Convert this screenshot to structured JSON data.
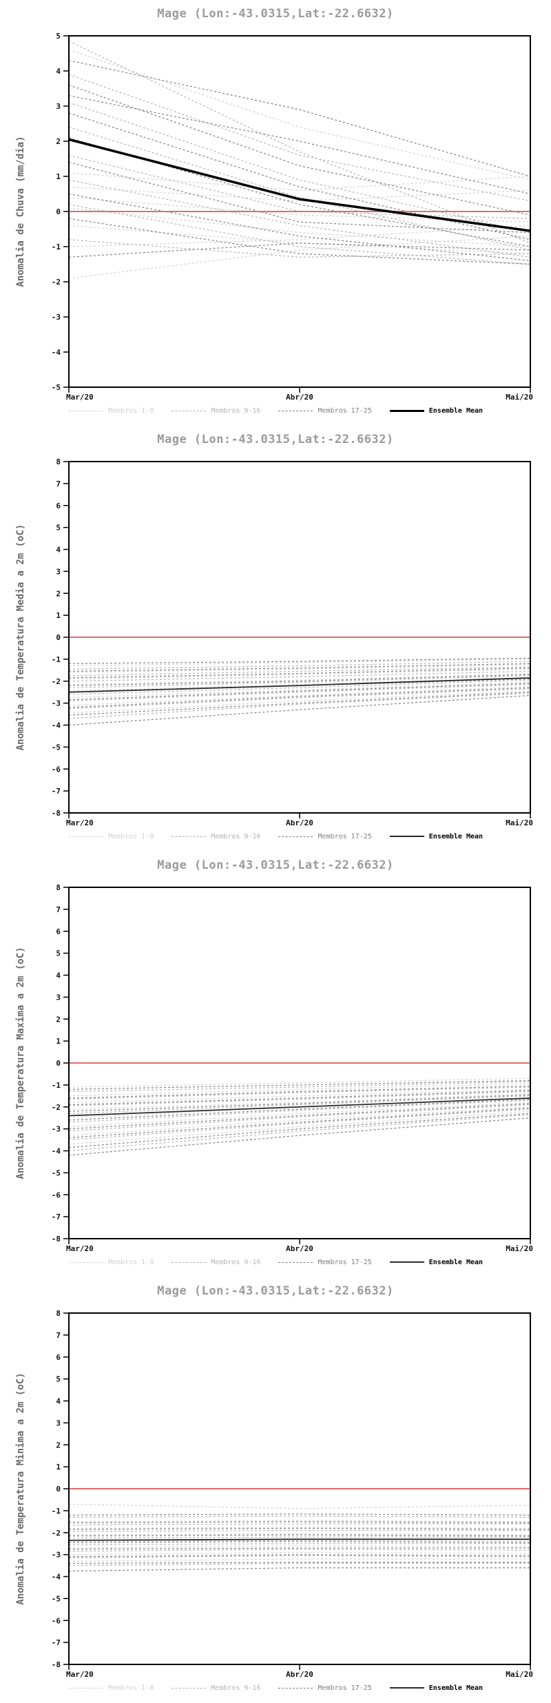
{
  "legend_note": "each chart repeats the same legend structure",
  "chart_data": [
    {
      "type": "line",
      "title": "Mage (Lon:-43.0315,Lat:-22.6632)",
      "ylabel": "Anomalia de Chuva (mm/dia)",
      "x_categories": [
        "Mar/20",
        "Abr/20",
        "Mai/20"
      ],
      "ylim": [
        -5,
        5
      ],
      "ytick_step": 1,
      "grid": false,
      "legend_position": "bottom",
      "zero_line_value": 0,
      "zero_line_color": "#e46a6a",
      "mean_label": "Ensemble Mean",
      "mean_color": "#000000",
      "mean_stroke_width": 3.5,
      "ensemble_mean": [
        2.05,
        0.35,
        -0.55
      ],
      "members_groups": [
        {
          "name": "Membros 1-8",
          "color": "#d2d2d2",
          "series": [
            [
              4.6,
              2.4,
              0.9
            ],
            [
              1.1,
              0.6,
              1.0
            ],
            [
              0.7,
              0.3,
              0.6
            ],
            [
              0.4,
              -0.1,
              -0.3
            ],
            [
              0.1,
              -0.6,
              -1.0
            ],
            [
              -0.4,
              -0.9,
              -1.2
            ],
            [
              -1.0,
              -0.8,
              -0.4
            ],
            [
              -1.9,
              -1.1,
              -0.7
            ]
          ]
        },
        {
          "name": "Membros 9-16",
          "color": "#b4b4b4",
          "series": [
            [
              4.85,
              1.7,
              -0.9
            ],
            [
              3.9,
              1.6,
              0.3
            ],
            [
              3.1,
              0.9,
              -0.6
            ],
            [
              2.4,
              0.4,
              -1.1
            ],
            [
              1.6,
              0.0,
              -0.2
            ],
            [
              0.9,
              -0.4,
              -1.3
            ],
            [
              0.2,
              -1.0,
              -1.5
            ],
            [
              -0.8,
              -1.3,
              -1.2
            ]
          ]
        },
        {
          "name": "Membros 17-25",
          "color": "#808080",
          "series": [
            [
              4.3,
              2.9,
              1.0
            ],
            [
              3.6,
              1.3,
              -0.1
            ],
            [
              3.3,
              2.0,
              0.5
            ],
            [
              2.8,
              0.7,
              -0.8
            ],
            [
              2.1,
              0.2,
              -1.0
            ],
            [
              1.4,
              -0.3,
              -0.6
            ],
            [
              0.5,
              -0.7,
              -1.4
            ],
            [
              -0.2,
              -1.2,
              -1.5
            ],
            [
              -1.3,
              -0.9,
              -1.1
            ]
          ]
        }
      ]
    },
    {
      "type": "line",
      "title": "Mage (Lon:-43.0315,Lat:-22.6632)",
      "ylabel": "Anomalia de Temperatura Media a 2m (oC)",
      "x_categories": [
        "Mar/20",
        "Abr/20",
        "Mai/20"
      ],
      "ylim": [
        -8,
        8
      ],
      "ytick_step": 1,
      "grid": false,
      "legend_position": "bottom",
      "zero_line_value": 0,
      "zero_line_color": "#e46a6a",
      "mean_label": "Ensemble Mean",
      "mean_color": "#2a2a2a",
      "mean_stroke_width": 1.8,
      "ensemble_mean": [
        -2.5,
        -2.2,
        -1.85
      ],
      "members_groups": [
        {
          "name": "Membros 1-8",
          "color": "#d2d2d2",
          "series": [
            [
              -1.3,
              -1.15,
              -1.0
            ],
            [
              -1.6,
              -1.45,
              -1.25
            ],
            [
              -1.9,
              -1.7,
              -1.45
            ],
            [
              -2.15,
              -1.95,
              -1.65
            ],
            [
              -2.45,
              -2.15,
              -1.85
            ],
            [
              -2.75,
              -2.4,
              -2.05
            ],
            [
              -3.1,
              -2.65,
              -2.25
            ],
            [
              -3.45,
              -2.9,
              -2.45
            ]
          ]
        },
        {
          "name": "Membros 9-16",
          "color": "#b4b4b4",
          "series": [
            [
              -1.45,
              -1.3,
              -1.1
            ],
            [
              -1.75,
              -1.55,
              -1.35
            ],
            [
              -2.0,
              -1.8,
              -1.55
            ],
            [
              -2.3,
              -2.05,
              -1.75
            ],
            [
              -2.6,
              -2.3,
              -1.95
            ],
            [
              -2.9,
              -2.5,
              -2.15
            ],
            [
              -3.25,
              -2.75,
              -2.35
            ],
            [
              -3.7,
              -3.05,
              -2.55
            ]
          ]
        },
        {
          "name": "Membros 17-25",
          "color": "#808080",
          "series": [
            [
              -1.2,
              -1.1,
              -0.95
            ],
            [
              -1.55,
              -1.4,
              -1.2
            ],
            [
              -1.85,
              -1.65,
              -1.4
            ],
            [
              -2.2,
              -2.0,
              -1.7
            ],
            [
              -2.5,
              -2.2,
              -1.9
            ],
            [
              -2.85,
              -2.45,
              -2.1
            ],
            [
              -3.2,
              -2.7,
              -2.3
            ],
            [
              -3.55,
              -3.0,
              -2.5
            ],
            [
              -4.0,
              -3.3,
              -2.65
            ]
          ]
        }
      ]
    },
    {
      "type": "line",
      "title": "Mage (Lon:-43.0315,Lat:-22.6632)",
      "ylabel": "Anomalia de Temperatura Maxima a 2m (oC)",
      "x_categories": [
        "Mar/20",
        "Abr/20",
        "Mai/20"
      ],
      "ylim": [
        -8,
        8
      ],
      "ytick_step": 1,
      "grid": false,
      "legend_position": "bottom",
      "zero_line_value": 0,
      "zero_line_color": "#e46a6a",
      "mean_label": "Ensemble Mean",
      "mean_color": "#2a2a2a",
      "mean_stroke_width": 1.8,
      "ensemble_mean": [
        -2.4,
        -2.0,
        -1.6
      ],
      "members_groups": [
        {
          "name": "Membros 1-8",
          "color": "#d2d2d2",
          "series": [
            [
              -1.1,
              -0.9,
              -0.7
            ],
            [
              -1.5,
              -1.2,
              -0.95
            ],
            [
              -1.8,
              -1.5,
              -1.2
            ],
            [
              -2.1,
              -1.8,
              -1.4
            ],
            [
              -2.5,
              -2.0,
              -1.6
            ],
            [
              -2.9,
              -2.3,
              -1.8
            ],
            [
              -3.3,
              -2.6,
              -2.0
            ],
            [
              -3.7,
              -2.9,
              -2.2
            ]
          ]
        },
        {
          "name": "Membros 9-16",
          "color": "#b4b4b4",
          "series": [
            [
              -1.3,
              -1.1,
              -0.85
            ],
            [
              -1.65,
              -1.35,
              -1.1
            ],
            [
              -1.95,
              -1.65,
              -1.3
            ],
            [
              -2.3,
              -1.9,
              -1.5
            ],
            [
              -2.7,
              -2.15,
              -1.7
            ],
            [
              -3.1,
              -2.45,
              -1.9
            ],
            [
              -3.5,
              -2.75,
              -2.1
            ],
            [
              -4.0,
              -3.1,
              -2.35
            ]
          ]
        },
        {
          "name": "Membros 17-25",
          "color": "#808080",
          "series": [
            [
              -1.2,
              -1.0,
              -0.8
            ],
            [
              -1.6,
              -1.3,
              -1.05
            ],
            [
              -1.9,
              -1.6,
              -1.25
            ],
            [
              -2.2,
              -1.85,
              -1.45
            ],
            [
              -2.6,
              -2.1,
              -1.65
            ],
            [
              -3.0,
              -2.4,
              -1.85
            ],
            [
              -3.4,
              -2.7,
              -2.05
            ],
            [
              -3.85,
              -3.0,
              -2.3
            ],
            [
              -4.2,
              -3.3,
              -2.5
            ]
          ]
        }
      ]
    },
    {
      "type": "line",
      "title": "Mage (Lon:-43.0315,Lat:-22.6632)",
      "ylabel": "Anomalia de Temperatura Minima a 2m (oC)",
      "x_categories": [
        "Mar/20",
        "Abr/20",
        "Mai/20"
      ],
      "ylim": [
        -8,
        8
      ],
      "ytick_step": 1,
      "grid": false,
      "legend_position": "bottom",
      "zero_line_value": 0,
      "zero_line_color": "#e46a6a",
      "mean_label": "Ensemble Mean",
      "mean_color": "#2a2a2a",
      "mean_stroke_width": 1.8,
      "ensemble_mean": [
        -2.35,
        -2.3,
        -2.3
      ],
      "members_groups": [
        {
          "name": "Membros 1-8",
          "color": "#d2d2d2",
          "series": [
            [
              -0.7,
              -0.9,
              -0.75
            ],
            [
              -1.5,
              -1.45,
              -1.5
            ],
            [
              -1.8,
              -1.75,
              -1.8
            ],
            [
              -2.1,
              -2.05,
              -2.1
            ],
            [
              -2.4,
              -2.35,
              -2.4
            ],
            [
              -2.7,
              -2.6,
              -2.65
            ],
            [
              -3.0,
              -2.9,
              -2.95
            ],
            [
              -3.3,
              -3.2,
              -3.2
            ]
          ]
        },
        {
          "name": "Membros 9-16",
          "color": "#b4b4b4",
          "series": [
            [
              -1.3,
              -1.25,
              -1.3
            ],
            [
              -1.65,
              -1.6,
              -1.6
            ],
            [
              -1.95,
              -1.9,
              -1.9
            ],
            [
              -2.25,
              -2.2,
              -2.2
            ],
            [
              -2.55,
              -2.5,
              -2.5
            ],
            [
              -2.85,
              -2.75,
              -2.8
            ],
            [
              -3.15,
              -3.05,
              -3.1
            ],
            [
              -3.5,
              -3.4,
              -3.4
            ]
          ]
        },
        {
          "name": "Membros 17-25",
          "color": "#808080",
          "series": [
            [
              -1.2,
              -1.15,
              -1.2
            ],
            [
              -1.55,
              -1.5,
              -1.55
            ],
            [
              -1.85,
              -1.8,
              -1.85
            ],
            [
              -2.15,
              -2.1,
              -2.15
            ],
            [
              -2.45,
              -2.4,
              -2.45
            ],
            [
              -2.75,
              -2.7,
              -2.7
            ],
            [
              -3.1,
              -3.0,
              -3.05
            ],
            [
              -3.4,
              -3.35,
              -3.35
            ],
            [
              -3.75,
              -3.6,
              -3.6
            ]
          ]
        }
      ]
    }
  ]
}
